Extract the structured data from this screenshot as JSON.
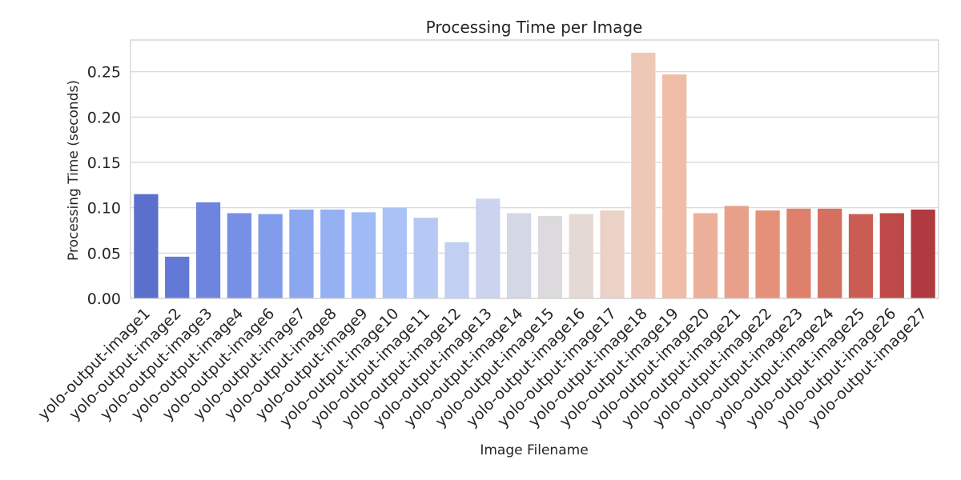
{
  "chart_data": {
    "type": "bar",
    "title": "Processing Time per Image",
    "xlabel": "Image Filename",
    "ylabel": "Processing Time (seconds)",
    "ylim": [
      0,
      0.285
    ],
    "yticks": [
      "0.00",
      "0.05",
      "0.10",
      "0.15",
      "0.20",
      "0.25"
    ],
    "grid": "horizontal",
    "categories": [
      "yolo-output-image1",
      "yolo-output-image2",
      "yolo-output-image3",
      "yolo-output-image4",
      "yolo-output-image6",
      "yolo-output-image7",
      "yolo-output-image8",
      "yolo-output-image9",
      "yolo-output-image10",
      "yolo-output-image11",
      "yolo-output-image12",
      "yolo-output-image13",
      "yolo-output-image14",
      "yolo-output-image15",
      "yolo-output-image16",
      "yolo-output-image17",
      "yolo-output-image18",
      "yolo-output-image19",
      "yolo-output-image20",
      "yolo-output-image21",
      "yolo-output-image22",
      "yolo-output-image23",
      "yolo-output-image24",
      "yolo-output-image25",
      "yolo-output-image26",
      "yolo-output-image27"
    ],
    "values": [
      0.115,
      0.046,
      0.106,
      0.094,
      0.093,
      0.098,
      0.098,
      0.095,
      0.1,
      0.089,
      0.062,
      0.11,
      0.094,
      0.091,
      0.093,
      0.097,
      0.271,
      0.247,
      0.094,
      0.102,
      0.097,
      0.099,
      0.099,
      0.093,
      0.094,
      0.098
    ],
    "colors": [
      "#5b6fcd",
      "#6379d6",
      "#6d85de",
      "#7690e5",
      "#809ceb",
      "#8aa7f0",
      "#95b1f3",
      "#a0baf6",
      "#abc2f6",
      "#b6c9f5",
      "#c0cff2",
      "#cbd3ee",
      "#d4d7e6",
      "#dcdadd",
      "#e4d9d2",
      "#ebd2c6",
      "#eec8b7",
      "#efbda7",
      "#ecb09a",
      "#e9a08a",
      "#e5917a",
      "#de806c",
      "#d56f5f",
      "#ca5c53",
      "#bd4a48",
      "#b03a3f"
    ]
  }
}
